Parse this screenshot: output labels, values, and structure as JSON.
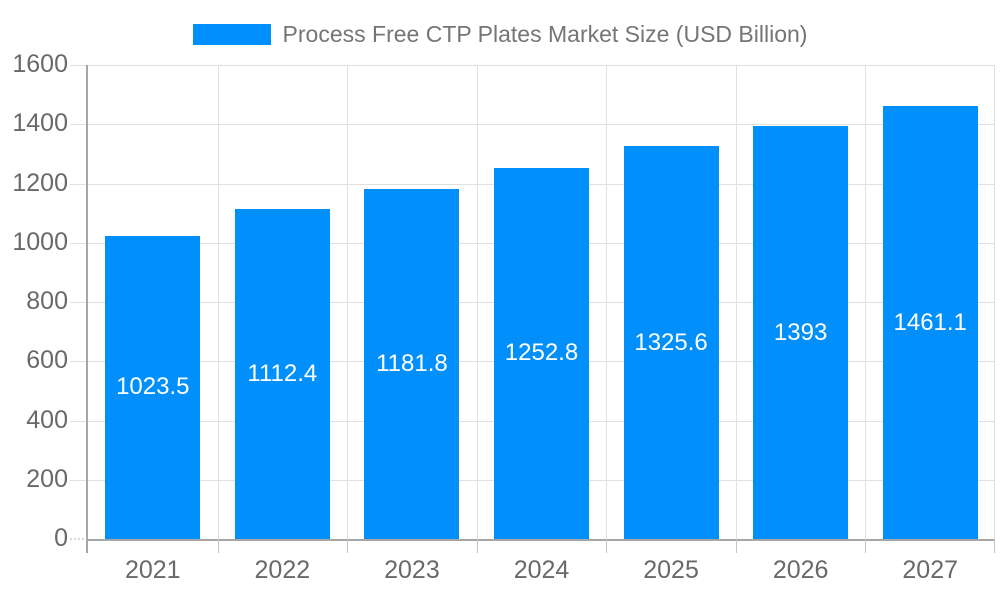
{
  "legend": {
    "label": "Process Free CTP Plates Market Size (USD Billion)"
  },
  "chart_data": {
    "type": "bar",
    "title": "Process Free CTP Plates Market Size (USD Billion)",
    "categories": [
      "2021",
      "2022",
      "2023",
      "2024",
      "2025",
      "2026",
      "2027"
    ],
    "values": [
      1023.5,
      1112.4,
      1181.8,
      1252.8,
      1325.6,
      1393,
      1461.1
    ],
    "series": [
      {
        "name": "Process Free CTP Plates Market Size (USD Billion)",
        "values": [
          1023.5,
          1112.4,
          1181.8,
          1252.8,
          1325.6,
          1393,
          1461.1
        ]
      }
    ],
    "xlabel": "",
    "ylabel": "",
    "ylim": [
      0,
      1600
    ],
    "yticks": [
      0,
      200,
      400,
      600,
      800,
      1000,
      1200,
      1400,
      1600
    ],
    "grid": true,
    "legend_position": "top-center",
    "data_labels": "inside-center",
    "colors": {
      "bar": "#008FFB",
      "axis_line": "#a6a6a6",
      "gridline": "#e0e0e0",
      "tick": "#c4c4c4",
      "axis_label": "#696969",
      "title": "#757575",
      "data_label": "#ffffff",
      "background": "#ffffff"
    }
  }
}
